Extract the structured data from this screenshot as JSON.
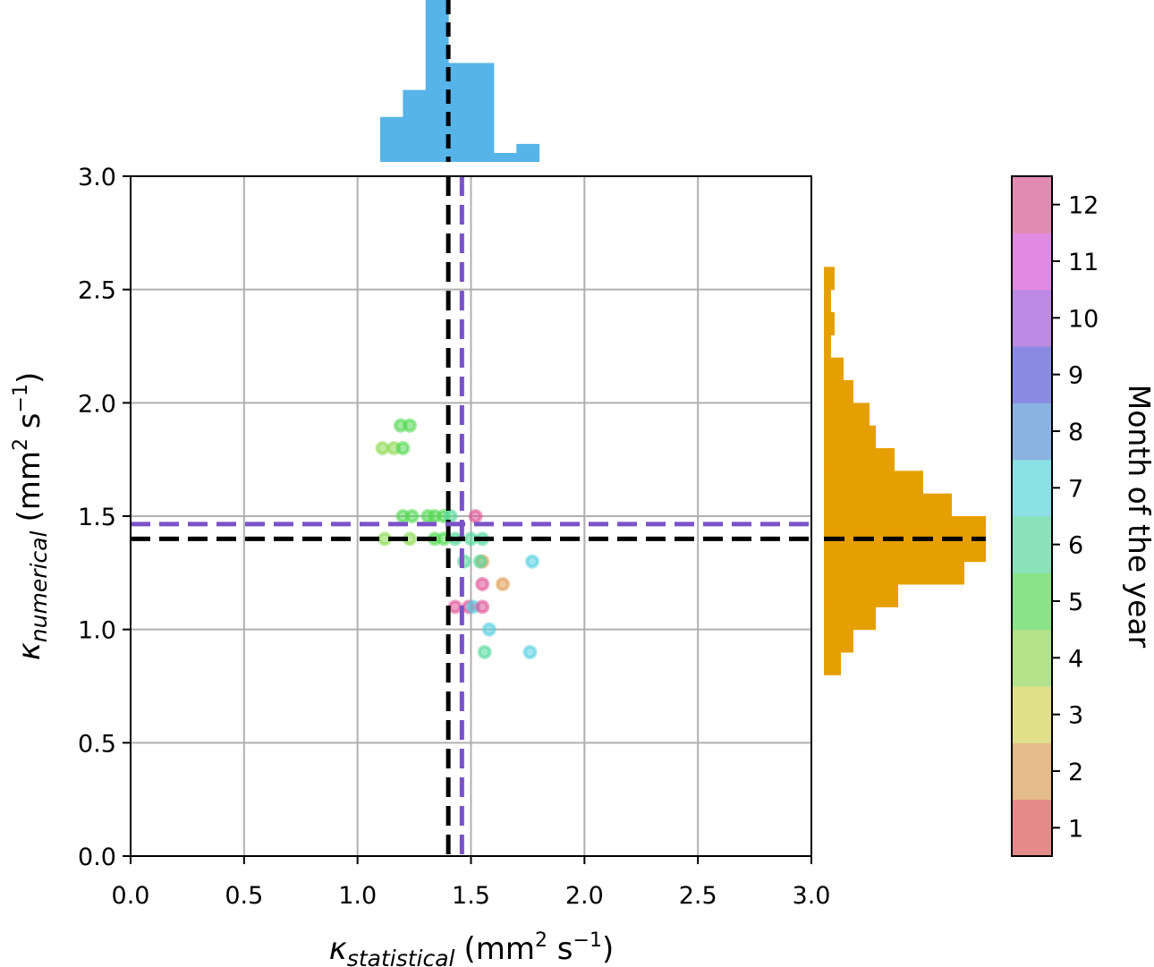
{
  "chart_data": {
    "type": "scatter",
    "xlabel": {
      "symbol": "κ",
      "sub": "statistical",
      "units": "(mm",
      "sup1": "2",
      "mid": " s",
      "sup2": "−1",
      "end": ")"
    },
    "ylabel": {
      "symbol": "κ",
      "sub": "numerical",
      "units": "(mm",
      "sup1": "2",
      "mid": " s",
      "sup2": "−1",
      "end": ")"
    },
    "xlim": [
      0,
      3
    ],
    "ylim": [
      0,
      3
    ],
    "xticks": [
      "0.0",
      "0.5",
      "1.0",
      "1.5",
      "2.0",
      "2.5",
      "3.0"
    ],
    "yticks": [
      "0.0",
      "0.5",
      "1.0",
      "1.5",
      "2.0",
      "2.5",
      "3.0"
    ],
    "grid": true,
    "points": [
      {
        "x": 1.19,
        "y": 1.9,
        "month": 5
      },
      {
        "x": 1.23,
        "y": 1.9,
        "month": 5
      },
      {
        "x": 1.11,
        "y": 1.8,
        "month": 4
      },
      {
        "x": 1.16,
        "y": 1.8,
        "month": 4
      },
      {
        "x": 1.2,
        "y": 1.8,
        "month": 5
      },
      {
        "x": 1.2,
        "y": 1.5,
        "month": 5
      },
      {
        "x": 1.24,
        "y": 1.5,
        "month": 5
      },
      {
        "x": 1.31,
        "y": 1.5,
        "month": 5
      },
      {
        "x": 1.34,
        "y": 1.5,
        "month": 5
      },
      {
        "x": 1.38,
        "y": 1.5,
        "month": 5
      },
      {
        "x": 1.41,
        "y": 1.5,
        "month": 6
      },
      {
        "x": 1.52,
        "y": 1.5,
        "month": 12
      },
      {
        "x": 1.12,
        "y": 1.4,
        "month": 4
      },
      {
        "x": 1.23,
        "y": 1.4,
        "month": 4
      },
      {
        "x": 1.34,
        "y": 1.4,
        "month": 5
      },
      {
        "x": 1.38,
        "y": 1.4,
        "month": 5
      },
      {
        "x": 1.43,
        "y": 1.4,
        "month": 6
      },
      {
        "x": 1.5,
        "y": 1.4,
        "month": 6
      },
      {
        "x": 1.55,
        "y": 1.4,
        "month": 6
      },
      {
        "x": 1.47,
        "y": 1.3,
        "month": 6
      },
      {
        "x": 1.55,
        "y": 1.3,
        "month": 2
      },
      {
        "x": 1.54,
        "y": 1.3,
        "month": 6
      },
      {
        "x": 1.77,
        "y": 1.3,
        "month": 7
      },
      {
        "x": 1.55,
        "y": 1.2,
        "month": 12
      },
      {
        "x": 1.64,
        "y": 1.2,
        "month": 2
      },
      {
        "x": 1.43,
        "y": 1.1,
        "month": 12
      },
      {
        "x": 1.49,
        "y": 1.1,
        "month": 12
      },
      {
        "x": 1.51,
        "y": 1.1,
        "month": 7
      },
      {
        "x": 1.55,
        "y": 1.1,
        "month": 12
      },
      {
        "x": 1.58,
        "y": 1.0,
        "month": 7
      },
      {
        "x": 1.56,
        "y": 0.9,
        "month": 6
      },
      {
        "x": 1.76,
        "y": 0.9,
        "month": 7
      }
    ],
    "reference_lines": [
      {
        "axis": "x",
        "value": 1.4,
        "color": "#000000"
      },
      {
        "axis": "x",
        "value": 1.46,
        "color": "#7b52c8"
      },
      {
        "axis": "y",
        "value": 1.4,
        "color": "#000000"
      },
      {
        "axis": "y",
        "value": 1.465,
        "color": "#7b52c8"
      }
    ],
    "top_histogram": {
      "color": "#56b4e9",
      "bin_edges": [
        1.1,
        1.2,
        1.3,
        1.4,
        1.5,
        1.6,
        1.7,
        1.8
      ],
      "counts": [
        5,
        8,
        18,
        11,
        11,
        1,
        2
      ],
      "ylim": [
        0,
        18
      ],
      "marker": 1.4
    },
    "right_histogram": {
      "color": "#e69f00",
      "bin_edges": [
        0.8,
        0.9,
        1.0,
        1.1,
        1.2,
        1.3,
        1.4,
        1.5,
        1.6,
        1.7,
        1.8,
        1.9,
        2.0,
        2.1,
        2.2,
        2.3,
        2.4,
        2.5,
        2.6
      ],
      "counts": [
        19,
        33,
        58,
        83,
        157,
        181,
        181,
        143,
        111,
        79,
        58,
        51,
        33,
        22,
        8,
        12,
        8,
        12
      ],
      "xlim": [
        0,
        181
      ],
      "marker": 1.4
    },
    "colorbar": {
      "label": "Month of the year",
      "ticks": [
        "1",
        "2",
        "3",
        "4",
        "5",
        "6",
        "7",
        "8",
        "9",
        "10",
        "11",
        "12"
      ],
      "colors": [
        "#e58a8a",
        "#e4bb8a",
        "#e0e08a",
        "#b3e28a",
        "#8ae28a",
        "#8ae2bb",
        "#8ae0e2",
        "#8ab3e2",
        "#8a8ae2",
        "#bb8ae2",
        "#e28ae2",
        "#e28ab3"
      ],
      "point_colors": [
        "#e06060",
        "#e09a50",
        "#d8d850",
        "#8ad850",
        "#50d850",
        "#50d89a",
        "#50d0e0",
        "#5090e0",
        "#5050e0",
        "#9a50e0",
        "#e050e0",
        "#e05095"
      ]
    }
  }
}
